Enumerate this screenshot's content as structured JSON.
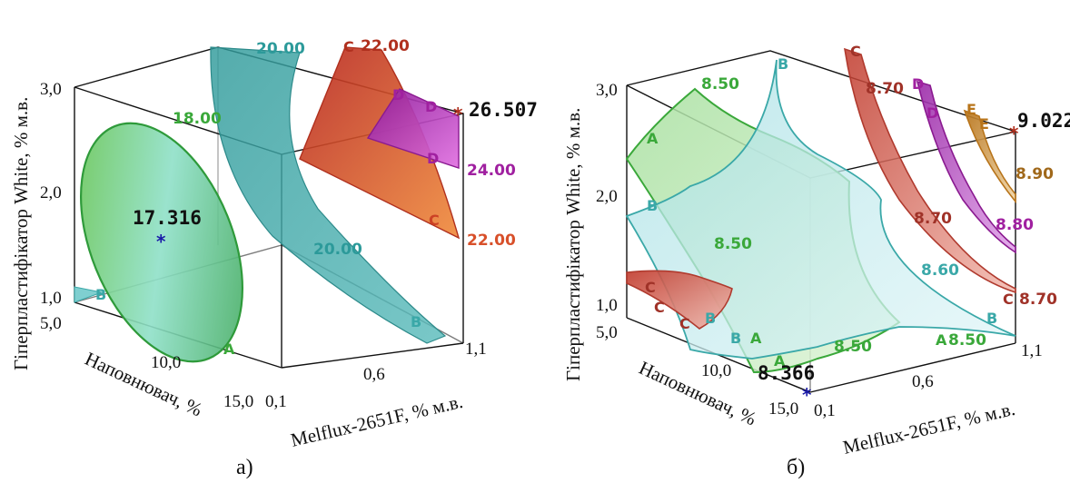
{
  "chart_data": [
    {
      "type": "3d-contour",
      "caption": "а)",
      "xlabel": "Melflux-2651F, % м.в.",
      "ylabel": "Наповнювач, %",
      "zlabel": "Гіперпластифікатор White, % м.в.",
      "x_ticks": [
        "0,1",
        "0,6",
        "1,1"
      ],
      "y_ticks": [
        "5,0",
        "10,0",
        "15,0"
      ],
      "z_ticks": [
        "1,0",
        "2,0",
        "3,0"
      ],
      "contour_labels": [
        "18.00",
        "20.00",
        "20.00",
        "22.00",
        "22.00",
        "24.00"
      ],
      "surface_letters": [
        "A",
        "B",
        "B",
        "C",
        "C",
        "D",
        "D",
        "D"
      ],
      "min_point": {
        "label": "17.316"
      },
      "max_point": {
        "label": "26.507"
      },
      "colors": {
        "A": "#3cb043",
        "B": "#3aa8a8",
        "C": "#cc4125",
        "D": "#a020a0"
      }
    },
    {
      "type": "3d-contour",
      "caption": "б)",
      "xlabel": "Melflux-2651F, % м.в.",
      "ylabel": "Наповнювач, %",
      "zlabel": "Гіперпластифікатор White, % м.в.",
      "x_ticks": [
        "0,1",
        "0,6",
        "1,1"
      ],
      "y_ticks": [
        "5,0",
        "10,0",
        "15,0"
      ],
      "z_ticks": [
        "1,0",
        "2,0",
        "3,0"
      ],
      "contour_labels": [
        "8.50",
        "8.50",
        "8.50",
        "8.50",
        "8.60",
        "8.70",
        "8.70",
        "8.70",
        "8.80",
        "8.90"
      ],
      "surface_letters": [
        "A",
        "A",
        "A",
        "A",
        "B",
        "B",
        "B",
        "B",
        "B",
        "C",
        "C",
        "C",
        "C",
        "C",
        "D",
        "D",
        "E",
        "E"
      ],
      "min_point": {
        "label": "8.366"
      },
      "max_point": {
        "label": "9.022"
      },
      "colors": {
        "A": "#3cb043",
        "B": "#3aa8a8",
        "C": "#b03a2e",
        "D": "#a020a0",
        "E": "#b8741a"
      }
    }
  ]
}
